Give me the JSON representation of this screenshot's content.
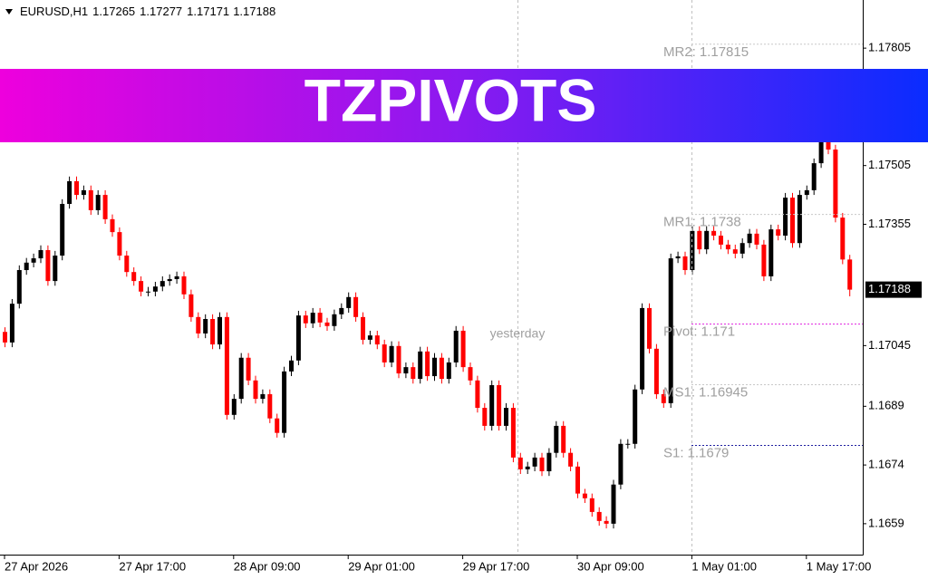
{
  "chart_data": {
    "type": "candlestick",
    "symbol": "EURUSD,H1",
    "categories": [
      "27 Apr 2026",
      null,
      null,
      null,
      null,
      null,
      null,
      null,
      null,
      null,
      null,
      null,
      null,
      null,
      null,
      null,
      "27 Apr 17:00",
      null,
      null,
      null,
      null,
      null,
      null,
      null,
      null,
      null,
      null,
      null,
      null,
      null,
      null,
      null,
      "28 Apr 09:00",
      null,
      null,
      null,
      null,
      null,
      null,
      null,
      null,
      null,
      null,
      null,
      null,
      null,
      null,
      null,
      "29 Apr 01:00",
      null,
      null,
      null,
      null,
      null,
      null,
      null,
      null,
      null,
      null,
      null,
      null,
      null,
      null,
      null,
      "29 Apr 17:00",
      null,
      null,
      null,
      null,
      null,
      null,
      null,
      null,
      null,
      null,
      null,
      null,
      null,
      null,
      null,
      "30 Apr 09:00",
      null,
      null,
      null,
      null,
      null,
      null,
      null,
      null,
      null,
      null,
      null,
      null,
      null,
      null,
      null,
      "1 May 01:00",
      null,
      null,
      null,
      null,
      null,
      null,
      null,
      null,
      null,
      null,
      null,
      null,
      null,
      null,
      null,
      "1 May 17:00",
      null,
      null,
      null,
      null,
      null,
      null
    ],
    "open": [
      1.1708,
      1.17053,
      1.17152,
      1.17238,
      1.17257,
      1.17268,
      1.17289,
      1.1721,
      1.17275,
      1.17407,
      1.17465,
      1.1743,
      1.17442,
      1.17391,
      1.1743,
      1.17368,
      1.17335,
      1.17275,
      1.17233,
      1.1721,
      1.17183,
      1.17183,
      1.17196,
      1.1721,
      1.17215,
      1.17222,
      1.17176,
      1.17118,
      1.17076,
      1.17113,
      1.17048,
      1.17118,
      1.16868,
      1.16909,
      1.17014,
      1.16956,
      1.16909,
      1.16921,
      1.16859,
      1.16822,
      1.16979,
      1.17007,
      1.17122,
      1.17102,
      1.17129,
      1.17104,
      1.17095,
      1.17125,
      1.17141,
      1.17169,
      1.17118,
      1.1706,
      1.17071,
      1.17048,
      1.17002,
      1.17044,
      1.16974,
      1.1699,
      1.1696,
      1.1703,
      1.16967,
      1.17014,
      1.1696,
      1.17002,
      1.17083,
      1.1699,
      1.16956,
      1.16886,
      1.1684,
      1.16944,
      1.1684,
      1.16886,
      1.16759,
      1.16729,
      1.16736,
      1.16759,
      1.16724,
      1.16771,
      1.1684,
      1.16771,
      1.16736,
      1.16667,
      1.16655,
      1.1662,
      1.16597,
      1.1659,
      1.1669,
      1.16794,
      1.16794,
      1.16933,
      1.17141,
      1.17037,
      1.16921,
      1.16898,
      1.17268,
      1.17273,
      1.17238,
      1.17338,
      1.17291,
      1.17338,
      1.17326,
      1.17303,
      1.17291,
      1.1728,
      1.17307,
      1.17331,
      1.17303,
      1.17222,
      1.17342,
      1.17326,
      1.17423,
      1.17307,
      1.1743,
      1.17442,
      1.17511,
      1.17569,
      1.17546,
      1.17372,
      1.17265
    ],
    "high": [
      1.17092,
      1.17164,
      1.1725,
      1.17269,
      1.1728,
      1.17301,
      1.17301,
      1.17287,
      1.17419,
      1.17477,
      1.17477,
      1.17454,
      1.17454,
      1.17442,
      1.17442,
      1.1738,
      1.17347,
      1.17287,
      1.17245,
      1.17222,
      1.17195,
      1.17208,
      1.17222,
      1.17227,
      1.17234,
      1.17234,
      1.17188,
      1.1713,
      1.17125,
      1.17125,
      1.1713,
      1.1713,
      1.16921,
      1.17026,
      1.17026,
      1.16968,
      1.16933,
      1.16933,
      1.16871,
      1.16991,
      1.17019,
      1.17134,
      1.17134,
      1.17141,
      1.17141,
      1.17116,
      1.17137,
      1.17153,
      1.17181,
      1.17181,
      1.1713,
      1.17083,
      1.17083,
      1.1706,
      1.17056,
      1.17056,
      1.17002,
      1.17002,
      1.17042,
      1.17042,
      1.17026,
      1.17026,
      1.17014,
      1.17095,
      1.17095,
      1.17002,
      1.16968,
      1.16898,
      1.16956,
      1.16956,
      1.16898,
      1.16898,
      1.16771,
      1.16748,
      1.16771,
      1.16771,
      1.16783,
      1.16852,
      1.16852,
      1.16783,
      1.16748,
      1.16679,
      1.16667,
      1.16632,
      1.16609,
      1.16702,
      1.16806,
      1.16806,
      1.16945,
      1.17153,
      1.17153,
      1.17049,
      1.16933,
      1.1728,
      1.17285,
      1.17285,
      1.1735,
      1.1735,
      1.1735,
      1.1735,
      1.17338,
      1.17315,
      1.17303,
      1.17319,
      1.17343,
      1.17343,
      1.17315,
      1.17354,
      1.17354,
      1.17435,
      1.17435,
      1.17442,
      1.17454,
      1.17523,
      1.17581,
      1.17581,
      1.17558,
      1.17384,
      1.17277
    ],
    "low": [
      1.17041,
      1.17041,
      1.1714,
      1.17226,
      1.17245,
      1.17256,
      1.17198,
      1.17198,
      1.17263,
      1.17395,
      1.17418,
      1.17418,
      1.17379,
      1.17379,
      1.17356,
      1.17323,
      1.17263,
      1.17221,
      1.17198,
      1.17171,
      1.17171,
      1.17171,
      1.17184,
      1.17198,
      1.17203,
      1.17164,
      1.17106,
      1.17064,
      1.17064,
      1.17036,
      1.17036,
      1.16856,
      1.16856,
      1.16897,
      1.16944,
      1.16897,
      1.16897,
      1.16847,
      1.1681,
      1.1681,
      1.16967,
      1.16995,
      1.1709,
      1.1709,
      1.17092,
      1.17083,
      1.17083,
      1.17113,
      1.17129,
      1.17106,
      1.17048,
      1.17048,
      1.17036,
      1.1699,
      1.1699,
      1.16962,
      1.16962,
      1.16948,
      1.16948,
      1.16955,
      1.16955,
      1.16948,
      1.16948,
      1.1699,
      1.16978,
      1.16944,
      1.16874,
      1.16828,
      1.16828,
      1.16828,
      1.16828,
      1.16747,
      1.16717,
      1.16717,
      1.16724,
      1.16712,
      1.16712,
      1.16759,
      1.16759,
      1.16724,
      1.16655,
      1.16643,
      1.16608,
      1.16585,
      1.16578,
      1.16578,
      1.16678,
      1.16782,
      1.16782,
      1.16921,
      1.17025,
      1.16909,
      1.16886,
      1.16886,
      1.17256,
      1.17226,
      1.17226,
      1.17279,
      1.17279,
      1.17314,
      1.17291,
      1.17279,
      1.17268,
      1.17268,
      1.17295,
      1.17291,
      1.1721,
      1.1721,
      1.17314,
      1.17314,
      1.17295,
      1.17295,
      1.17418,
      1.1743,
      1.17499,
      1.17534,
      1.1736,
      1.17253,
      1.17171
    ],
    "close": [
      1.17053,
      1.17152,
      1.17238,
      1.17257,
      1.17268,
      1.17289,
      1.1721,
      1.17275,
      1.17407,
      1.17465,
      1.1743,
      1.17442,
      1.17391,
      1.1743,
      1.17368,
      1.17335,
      1.17275,
      1.17233,
      1.1721,
      1.17183,
      1.17183,
      1.17196,
      1.1721,
      1.17215,
      1.17222,
      1.17176,
      1.17118,
      1.17076,
      1.17113,
      1.17048,
      1.17118,
      1.16868,
      1.16909,
      1.17014,
      1.16956,
      1.16909,
      1.16921,
      1.16859,
      1.16822,
      1.16979,
      1.17007,
      1.17122,
      1.17102,
      1.17129,
      1.17104,
      1.17095,
      1.17125,
      1.17141,
      1.17169,
      1.17118,
      1.1706,
      1.17071,
      1.17048,
      1.17002,
      1.17044,
      1.16974,
      1.1699,
      1.1696,
      1.1703,
      1.16967,
      1.17014,
      1.1696,
      1.17002,
      1.17083,
      1.1699,
      1.16956,
      1.16886,
      1.1684,
      1.16944,
      1.1684,
      1.16886,
      1.16759,
      1.16729,
      1.16736,
      1.16759,
      1.16724,
      1.16771,
      1.1684,
      1.16771,
      1.16736,
      1.16667,
      1.16655,
      1.1662,
      1.16597,
      1.1659,
      1.1669,
      1.16794,
      1.16794,
      1.16933,
      1.17141,
      1.17037,
      1.16921,
      1.16898,
      1.17268,
      1.17273,
      1.17238,
      1.17338,
      1.17291,
      1.17338,
      1.17326,
      1.17303,
      1.17291,
      1.1728,
      1.17307,
      1.17331,
      1.17303,
      1.17222,
      1.17342,
      1.17326,
      1.17423,
      1.17307,
      1.1743,
      1.17442,
      1.17511,
      1.17569,
      1.17546,
      1.17372,
      1.17265,
      1.17188
    ],
    "up_color": "#000000",
    "down_color": "#ff0000",
    "ylim": [
      1.16511,
      1.17928
    ],
    "yticks": [
      1.17805,
      1.17505,
      1.17355,
      1.17045,
      1.1689,
      1.1674,
      1.1659
    ],
    "levels": [
      {
        "name": "MR2:",
        "value": 1.17815,
        "color": "#c8c8c8"
      },
      {
        "name": "MR1:",
        "value": 1.1738,
        "color": "#c8c8c8"
      },
      {
        "name": "Pivot:",
        "value": 1.171,
        "color": "#e020e0"
      },
      {
        "name": "MS1:",
        "value": 1.16945,
        "color": "#c8c8c8"
      },
      {
        "name": "S1:",
        "value": 1.1679,
        "color": "#2020a0"
      }
    ],
    "annotation": "yesterday"
  },
  "banner": "TZPIVOTS"
}
